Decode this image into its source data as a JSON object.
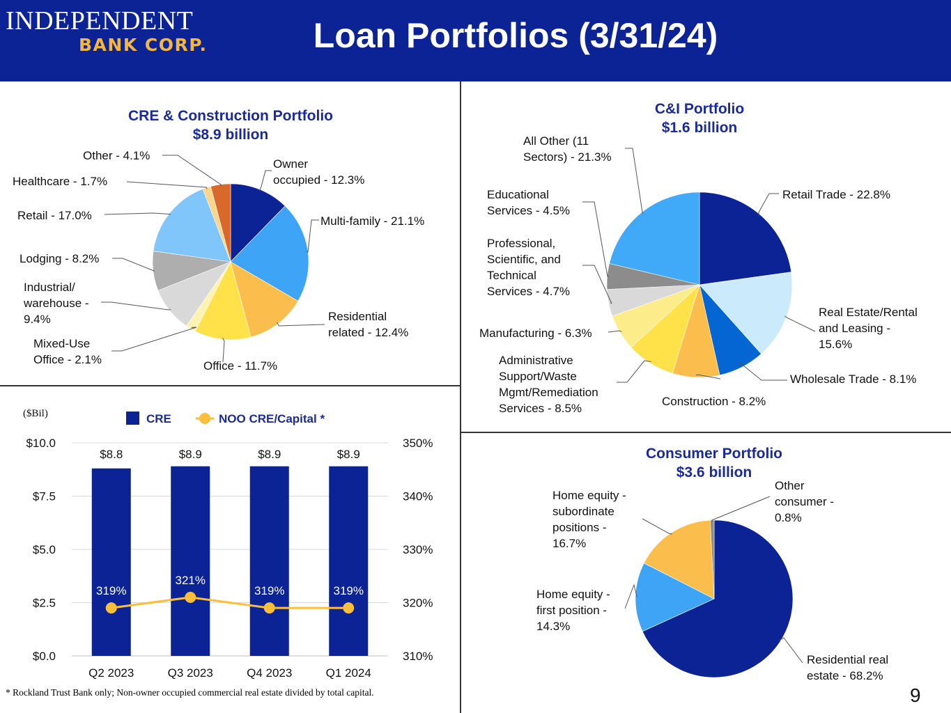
{
  "header": {
    "logo_line1": "INDEPENDENT",
    "logo_line2": "BANK CORP.",
    "title": "Loan Portfolios (3/31/24)"
  },
  "colors": {
    "header_bg": "#0c2396",
    "title_text": "#1a2a9a",
    "cre_bar": "#0c2396",
    "noo_line": "#fbbe3a"
  },
  "chart_data": [
    {
      "type": "pie",
      "title": "CRE & Construction Portfolio",
      "subtitle": "$8.9 billion",
      "slices": [
        {
          "label": "Owner occupied - 12.3%",
          "lines": [
            "Owner",
            "occupied - 12.3%"
          ],
          "value": 12.3,
          "color": "#0c2396"
        },
        {
          "label": "Multi-family - 21.1%",
          "lines": [
            "Multi-family - 21.1%"
          ],
          "value": 21.1,
          "color": "#3ea4f5"
        },
        {
          "label": "Residential related - 12.4%",
          "lines": [
            "Residential",
            "related - 12.4%"
          ],
          "value": 12.4,
          "color": "#fbbe4c"
        },
        {
          "label": "Office - 11.7%",
          "lines": [
            "Office - 11.7%"
          ],
          "value": 11.7,
          "color": "#ffe14a"
        },
        {
          "label": "Mixed-Use Office - 2.1%",
          "lines": [
            "Mixed-Use",
            "Office - 2.1%"
          ],
          "value": 2.1,
          "color": "#fff3b3"
        },
        {
          "label": "Industrial/ warehouse - 9.4%",
          "lines": [
            "Industrial/",
            "warehouse -",
            "9.4%"
          ],
          "value": 9.4,
          "color": "#d9d9d9"
        },
        {
          "label": "Lodging - 8.2%",
          "lines": [
            "Lodging - 8.2%"
          ],
          "value": 8.2,
          "color": "#aeaeae"
        },
        {
          "label": "Retail - 17.0%",
          "lines": [
            "Retail - 17.0%"
          ],
          "value": 17.0,
          "color": "#80c6fb"
        },
        {
          "label": "Healthcare - 1.7%",
          "lines": [
            "Healthcare  - 1.7%"
          ],
          "value": 1.7,
          "color": "#fcd48a"
        },
        {
          "label": "Other - 4.1%",
          "lines": [
            "Other - 4.1%"
          ],
          "value": 4.1,
          "color": "#d8692b"
        }
      ]
    },
    {
      "type": "pie",
      "title": "C&I Portfolio",
      "subtitle": "$1.6 billion",
      "slices": [
        {
          "label": "Retail Trade - 22.8%",
          "lines": [
            "Retail Trade - 22.8%"
          ],
          "value": 22.8,
          "color": "#0c2396"
        },
        {
          "label": "Real Estate/Rental and Leasing - 15.6%",
          "lines": [
            "Real Estate/Rental",
            "and Leasing -",
            "15.6%"
          ],
          "value": 15.6,
          "color": "#cbebfc"
        },
        {
          "label": "Wholesale Trade - 8.1%",
          "lines": [
            "Wholesale Trade - 8.1%"
          ],
          "value": 8.1,
          "color": "#0466d2"
        },
        {
          "label": "Construction - 8.2%",
          "lines": [
            "Construction - 8.2%"
          ],
          "value": 8.2,
          "color": "#fbbe4c"
        },
        {
          "label": "Administrative Support/Waste Mgmt/Remediation Services - 8.5%",
          "lines": [
            "Administrative",
            "Support/Waste",
            "Mgmt/Remediation",
            "Services - 8.5%"
          ],
          "value": 8.5,
          "color": "#ffe14a"
        },
        {
          "label": "Manufacturing - 6.3%",
          "lines": [
            "Manufacturing - 6.3%"
          ],
          "value": 6.3,
          "color": "#fdec8a"
        },
        {
          "label": "Professional, Scientific, and Technical Services - 4.7%",
          "lines": [
            "Professional,",
            "Scientific, and",
            "Technical",
            "Services - 4.7%"
          ],
          "value": 4.7,
          "color": "#d9d9d9"
        },
        {
          "label": "Educational Services - 4.5%",
          "lines": [
            "Educational",
            "Services - 4.5%"
          ],
          "value": 4.5,
          "color": "#8c8c8c"
        },
        {
          "label": "All Other (11 Sectors) - 21.3%",
          "lines": [
            "All Other (11",
            "Sectors) - 21.3%"
          ],
          "value": 21.3,
          "color": "#41aaf8"
        }
      ]
    },
    {
      "type": "pie",
      "title": "Consumer Portfolio",
      "subtitle": "$3.6 billion",
      "slices": [
        {
          "label": "Residential real estate - 68.2%",
          "lines": [
            "Residential real",
            "estate - 68.2%"
          ],
          "value": 68.2,
          "color": "#0c2396"
        },
        {
          "label": "Home equity - first position - 14.3%",
          "lines": [
            "Home equity -",
            "first position -",
            "14.3%"
          ],
          "value": 14.3,
          "color": "#3ea4f5"
        },
        {
          "label": "Home equity - subordinate positions - 16.7%",
          "lines": [
            "Home equity -",
            "subordinate",
            "positions -",
            "16.7%"
          ],
          "value": 16.7,
          "color": "#fbbe4c"
        },
        {
          "label": "Other consumer - 0.8%",
          "lines": [
            "Other",
            "consumer -",
            "0.8%"
          ],
          "value": 0.8,
          "color": "#8c8c8c"
        }
      ]
    },
    {
      "type": "bar",
      "unit_label": "($Bil)",
      "categories": [
        "Q2 2023",
        "Q3 2023",
        "Q4 2023",
        "Q1 2024"
      ],
      "series": [
        {
          "name": "CRE",
          "type": "bar",
          "axis": "left",
          "values": [
            8.8,
            8.9,
            8.9,
            8.9
          ],
          "labels": [
            "$8.8",
            "$8.9",
            "$8.9",
            "$8.9"
          ],
          "color": "#0c2396"
        },
        {
          "name": "NOO CRE/Capital *",
          "type": "line",
          "axis": "right",
          "values": [
            319,
            321,
            319,
            319
          ],
          "labels": [
            "319%",
            "321%",
            "319%",
            "319%"
          ],
          "color": "#fbbe3a"
        }
      ],
      "y_left": {
        "min": 0,
        "max": 10,
        "ticks": [
          "$0.0",
          "$2.5",
          "$5.0",
          "$7.5",
          "$10.0"
        ]
      },
      "y_right": {
        "min": 310,
        "max": 350,
        "ticks": [
          "310%",
          "320%",
          "330%",
          "340%",
          "350%"
        ]
      },
      "grid": true,
      "legend": "top"
    }
  ],
  "footnote": "* Rockland Trust Bank only; Non-owner occupied commercial real estate divided by total capital.",
  "page_number": "9"
}
